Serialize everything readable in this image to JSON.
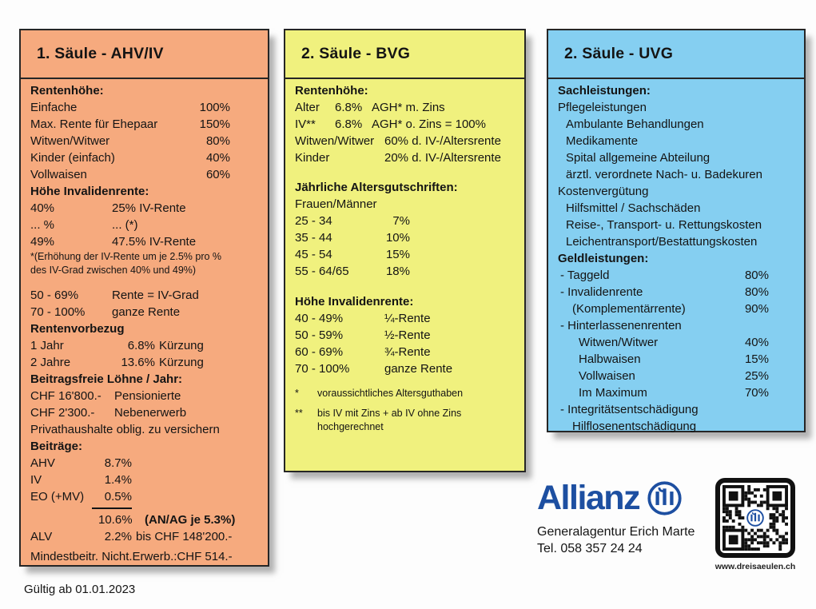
{
  "colors": {
    "ahv_bg": "#f6aa7e",
    "bvg_bg": "#f0f17e",
    "uvg_bg": "#85cff1",
    "allianz_blue": "#1d4fa1",
    "border": "#262626"
  },
  "ahv": {
    "title": "1. Säule - AHV/IV",
    "s1": {
      "h": "Rentenhöhe:",
      "r0": {
        "l": "Einfache",
        "v": "100%"
      },
      "r1": {
        "l": "Max. Rente für Ehepaar",
        "v": "150%"
      },
      "r2": {
        "l": "Witwen/Witwer",
        "v": "80%"
      },
      "r3": {
        "l": "Kinder (einfach)",
        "v": "40%"
      },
      "r4": {
        "l": "Vollwaisen",
        "v": "60%"
      }
    },
    "s2": {
      "h": "Höhe Invalidenrente:",
      "r0": {
        "l": "40%",
        "v": "25% IV-Rente"
      },
      "r1": {
        "l": "... %",
        "v": "... (*)"
      },
      "r2": {
        "l": "49%",
        "v": "47.5% IV-Rente"
      },
      "n1": "*(Erhöhung der IV-Rente um je 2.5% pro %",
      "n2": "des IV-Grad zwischen 40% und 49%)",
      "r3": {
        "l": "50 - 69%",
        "v": "Rente = IV-Grad"
      },
      "r4": {
        "l": "70 - 100%",
        "v": "ganze Rente"
      }
    },
    "s3": {
      "h": "Rentenvorbezug",
      "r0": {
        "l": "1 Jahr",
        "p": "6.8%",
        "s": "Kürzung"
      },
      "r1": {
        "l": "2 Jahre",
        "p": "13.6%",
        "s": "Kürzung"
      }
    },
    "s4": {
      "h": "Beitragsfreie Löhne / Jahr:",
      "r0": {
        "l": "CHF 16'800.-",
        "v": "Pensionierte"
      },
      "r1": {
        "l": "CHF 2'300.-",
        "v": "Nebenerwerb"
      },
      "note": "Privathaushalte oblig. zu versichern"
    },
    "s5": {
      "h": "Beiträge:",
      "r0": {
        "l": "AHV",
        "v": "8.7%"
      },
      "r1": {
        "l": "IV",
        "v": "1.4%"
      },
      "r2": {
        "l": "EO (+MV)",
        "v": "0.5%"
      },
      "total": "10.6%",
      "total_note": "(AN/AG je 5.3%)",
      "alv": {
        "l": "ALV",
        "p": "2.2%",
        "s": "bis CHF 148'200.-"
      }
    },
    "footer": "Mindestbeitr. Nicht.Erwerb.:CHF 514.-"
  },
  "bvg": {
    "title": "2. Säule - BVG",
    "s1": {
      "h": "Rentenhöhe:",
      "r0": {
        "l": "Alter",
        "p": "6.8%",
        "v": "AGH* m. Zins"
      },
      "r1": {
        "l": "IV**",
        "p": "6.8%",
        "v": "AGH* o. Zins = 100%"
      },
      "r2": {
        "l": "Witwen/Witwer",
        "v": "60% d. IV-/Altersrente"
      },
      "r3": {
        "l": "Kinder",
        "v": "20% d. IV-/Altersrente"
      }
    },
    "s2": {
      "h": "Jährliche Altersgutschriften:",
      "sub": "Frauen/Männer",
      "r0": {
        "l": "25 - 34",
        "v": "7%"
      },
      "r1": {
        "l": "35 - 44",
        "v": "10%"
      },
      "r2": {
        "l": "45 - 54",
        "v": "15%"
      },
      "r3": {
        "l": "55 - 64/65",
        "v": "18%"
      }
    },
    "s3": {
      "h": "Höhe Invalidenrente:",
      "r0": {
        "l": "40 - 49%",
        "v": "¼-Rente"
      },
      "r1": {
        "l": "50 - 59%",
        "v": "½-Rente"
      },
      "r2": {
        "l": "60 - 69%",
        "v": "¾-Rente"
      },
      "r3": {
        "l": "70 - 100%",
        "v": "ganze Rente"
      }
    },
    "fn1": {
      "m": "*",
      "t": "voraussichtliches Altersguthaben"
    },
    "fn2": {
      "m": "**",
      "t1": "bis IV mit Zins + ab IV ohne Zins",
      "t2": "hochgerechnet"
    }
  },
  "uvg": {
    "title": "2. Säule - UVG",
    "s1": {
      "h": "Sachleistungen:",
      "pflege": "Pflegeleistungen",
      "amb": "Ambulante Behandlungen",
      "med": "Medikamente",
      "spital": "Spital allgemeine Abteilung",
      "aerztl": "ärztl. verordnete Nach- u. Badekuren",
      "kosten": "Kostenvergütung",
      "hilfs": "Hilfsmittel / Sachschäden",
      "reise": "Reise-, Transport- u. Rettungskosten",
      "leichen": "Leichentransport/Bestattungskosten"
    },
    "s2": {
      "h": "Geldleistungen:",
      "taggeld": {
        "l": "- Taggeld",
        "v": "80%"
      },
      "invaliden": {
        "l": "- Invalidenrente",
        "v": "80%"
      },
      "komplement": {
        "l": "(Komplementärrente)",
        "v": "90%"
      },
      "hinterlassen": {
        "l": "- Hinterlassenenrenten"
      },
      "witwen": {
        "l": "Witwen/Witwer",
        "v": "40%"
      },
      "halbwaisen": {
        "l": "Halbwaisen",
        "v": "15%"
      },
      "vollwaisen": {
        "l": "Vollwaisen",
        "v": "25%"
      },
      "maximum": {
        "l": "Im Maximum",
        "v": "70%"
      },
      "integritaet": {
        "l": "- Integritätsentschädigung"
      },
      "hilflosen": {
        "l": "Hilflosenentschädigung"
      }
    }
  },
  "footer": {
    "valid": "Gültig ab 01.01.2023",
    "wordmark": "Allianz",
    "agency": "Generalagentur Erich Marte",
    "phone": "Tel. 058 357 24 24",
    "site": "www.dreisaeulen.ch"
  }
}
